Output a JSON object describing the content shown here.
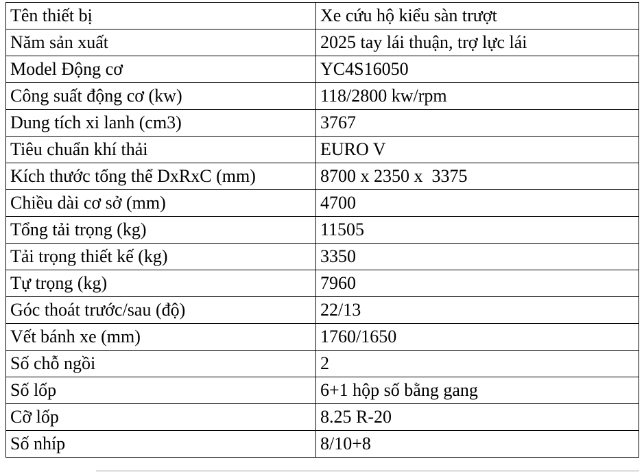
{
  "table": {
    "rows": [
      [
        "Tên thiết bị",
        "Xe cứu hộ kiểu sàn trượt"
      ],
      [
        "Năm sản xuất",
        "2025 tay lái thuận, trợ lực lái"
      ],
      [
        "Model Động cơ",
        "YC4S16050"
      ],
      [
        "Công suất động cơ (kw)",
        "118/2800 kw/rpm"
      ],
      [
        "Dung tích xi lanh (cm3)",
        "3767"
      ],
      [
        "Tiêu chuẩn khí thải",
        "EURO V"
      ],
      [
        "Kích thước tổng thể DxRxC (mm)",
        "8700 x 2350 x  3375"
      ],
      [
        "Chiều dài cơ sở (mm)",
        "4700"
      ],
      [
        "Tổng tải trọng (kg)",
        "11505"
      ],
      [
        "Tải trọng thiết kế (kg)",
        "3350"
      ],
      [
        "Tự trọng (kg)",
        "7960"
      ],
      [
        "Góc thoát trước/sau (độ)",
        "22/13"
      ],
      [
        "Vết bánh xe (mm)",
        "1760/1650"
      ],
      [
        "Số chỗ ngồi",
        "2"
      ],
      [
        "Số lốp",
        "6+1 hộp số bằng gang"
      ],
      [
        "Cỡ lốp",
        "8.25 R-20"
      ],
      [
        "Số nhíp",
        "8/10+8"
      ]
    ]
  }
}
